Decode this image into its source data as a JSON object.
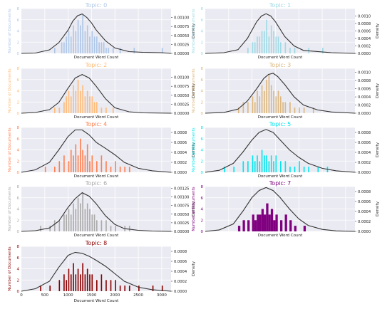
{
  "figure": {
    "shared_x_ticks": [
      "0",
      "500",
      "1000",
      "1500",
      "2000",
      "2500",
      "3000"
    ],
    "x_label": "Document Word Count",
    "y_label": "Number of Documents",
    "density_label": "Density"
  },
  "chart_data": [
    {
      "type": "bar",
      "title": "Topic: 0",
      "color": "#aec7e8",
      "xlabel": "Document Word Count",
      "ylabel": "Number of Documents",
      "y2label": "Density",
      "xlim": [
        0,
        3200
      ],
      "ylim": [
        0,
        8
      ],
      "y2lim": [
        0,
        0.00125
      ],
      "y_ticks": [
        "0",
        "2",
        "4",
        "6",
        "8"
      ],
      "density_ticks": [
        "0.00000",
        "0.00025",
        "0.00050",
        "0.00075",
        "0.00100"
      ],
      "histogram": {
        "bin_width": 25,
        "x": [
          700,
          850,
          900,
          950,
          1000,
          1050,
          1100,
          1150,
          1200,
          1250,
          1300,
          1350,
          1400,
          1450,
          1500,
          1550,
          1600,
          1650,
          1700,
          1750,
          1800,
          1850,
          1950,
          2100,
          2400,
          3000
        ],
        "counts": [
          1,
          2,
          2,
          3,
          4,
          3,
          5,
          4,
          6,
          5,
          7,
          4,
          5,
          3,
          4,
          3,
          3,
          2,
          2,
          2,
          1,
          1,
          1,
          1,
          1,
          1
        ]
      },
      "density": {
        "x": [
          0,
          300,
          600,
          800,
          1000,
          1100,
          1200,
          1300,
          1400,
          1500,
          1600,
          1800,
          2000,
          2300,
          2600,
          3000,
          3200
        ],
        "y": [
          0.0,
          1e-05,
          0.0001,
          0.0003,
          0.00065,
          0.0009,
          0.00105,
          0.0011,
          0.001,
          0.00085,
          0.00065,
          0.00035,
          0.00015,
          5e-05,
          3e-05,
          2e-05,
          0.0
        ]
      }
    },
    {
      "type": "bar",
      "title": "Topic: 1",
      "color": "#9edae5",
      "xlabel": "Document Word Count",
      "ylabel": "Number of Documents",
      "y2label": "Density",
      "xlim": [
        0,
        3200
      ],
      "ylim": [
        0,
        8
      ],
      "y2lim": [
        0,
        0.0012
      ],
      "y_ticks": [
        "0",
        "2",
        "4",
        "6",
        "8"
      ],
      "density_ticks": [
        "0.0000",
        "0.0002",
        "0.0004",
        "0.0006",
        "0.0008",
        "0.0010"
      ],
      "histogram": {
        "bin_width": 25,
        "x": [
          900,
          1000,
          1050,
          1100,
          1150,
          1200,
          1250,
          1300,
          1350,
          1400,
          1450,
          1500,
          1550,
          1600,
          1700,
          1800,
          1900,
          2200,
          2500
        ],
        "counts": [
          1,
          2,
          2,
          3,
          3,
          4,
          4,
          6,
          3,
          5,
          4,
          3,
          3,
          2,
          2,
          1,
          1,
          1,
          1
        ]
      },
      "density": {
        "x": [
          0,
          400,
          700,
          900,
          1100,
          1200,
          1300,
          1400,
          1500,
          1600,
          1700,
          1900,
          2100,
          2400,
          2700,
          3200
        ],
        "y": [
          0.0,
          2e-05,
          0.0001,
          0.0004,
          0.00085,
          0.001,
          0.00106,
          0.001,
          0.00085,
          0.00065,
          0.00045,
          0.0002,
          8e-05,
          5e-05,
          2e-05,
          0.0
        ]
      }
    },
    {
      "type": "bar",
      "title": "Topic: 2",
      "color": "#ffbb78",
      "xlabel": "Document Word Count",
      "ylabel": "Number of Documents",
      "y2label": "Density",
      "xlim": [
        0,
        3200
      ],
      "ylim": [
        0,
        8
      ],
      "y2lim": [
        0,
        0.00125
      ],
      "y_ticks": [
        "0",
        "2",
        "4",
        "6",
        "8"
      ],
      "density_ticks": [
        "0.00000",
        "0.00025",
        "0.00050",
        "0.00075",
        "0.00100"
      ],
      "histogram": {
        "bin_width": 25,
        "x": [
          700,
          800,
          900,
          950,
          1000,
          1050,
          1100,
          1150,
          1200,
          1250,
          1300,
          1350,
          1400,
          1450,
          1500,
          1550,
          1600,
          1700,
          1800,
          1950
        ],
        "counts": [
          1,
          1,
          2,
          3,
          4,
          3,
          5,
          4,
          6,
          4,
          5,
          3,
          4,
          3,
          3,
          2,
          2,
          1,
          1,
          1
        ]
      },
      "density": {
        "x": [
          0,
          300,
          600,
          800,
          1000,
          1150,
          1300,
          1450,
          1600,
          1800,
          2000,
          2300,
          2600,
          3200
        ],
        "y": [
          0.0,
          2e-05,
          0.0001,
          0.0003,
          0.0007,
          0.00098,
          0.00108,
          0.00098,
          0.00075,
          0.0004,
          0.00015,
          4e-05,
          1e-05,
          0.0
        ]
      }
    },
    {
      "type": "bar",
      "title": "Topic: 3",
      "color": "#ddb77e",
      "xlabel": "Document Word Count",
      "ylabel": "Number of Documents",
      "y2label": "Density",
      "xlim": [
        0,
        3200
      ],
      "ylim": [
        0,
        8
      ],
      "y2lim": [
        0,
        0.0011
      ],
      "y_ticks": [
        "0",
        "2",
        "4",
        "6",
        "8"
      ],
      "density_ticks": [
        "0.0000",
        "0.0002",
        "0.0004",
        "0.0006",
        "0.0008",
        "0.0010"
      ],
      "histogram": {
        "bin_width": 25,
        "x": [
          700,
          800,
          900,
          1000,
          1050,
          1100,
          1150,
          1200,
          1250,
          1300,
          1350,
          1400,
          1450,
          1500,
          1550,
          1600,
          1650,
          1700,
          1800,
          1900,
          2000,
          2100,
          2300
        ],
        "counts": [
          1,
          2,
          2,
          3,
          2,
          4,
          3,
          5,
          4,
          6,
          7,
          5,
          4,
          3,
          4,
          3,
          2,
          2,
          2,
          1,
          1,
          1,
          1
        ]
      },
      "density": {
        "x": [
          0,
          400,
          700,
          900,
          1100,
          1250,
          1350,
          1450,
          1550,
          1700,
          1900,
          2100,
          2400,
          2700,
          3200
        ],
        "y": [
          0.0,
          2e-05,
          0.0001,
          0.0003,
          0.0006,
          0.00085,
          0.00095,
          0.00098,
          0.0009,
          0.0007,
          0.0004,
          0.0002,
          8e-05,
          3e-05,
          0.0
        ]
      }
    },
    {
      "type": "bar",
      "title": "Topic: 4",
      "color": "#ff7f50",
      "xlabel": "Document Word Count",
      "ylabel": "Number of Documents",
      "y2label": "Density",
      "xlim": [
        0,
        3200
      ],
      "ylim": [
        0,
        8
      ],
      "y2lim": [
        0,
        0.0009
      ],
      "y_ticks": [
        "0",
        "2",
        "4",
        "6",
        "8"
      ],
      "density_ticks": [
        "0.0000",
        "0.0002",
        "0.0004",
        "0.0006",
        "0.0008"
      ],
      "histogram": {
        "bin_width": 25,
        "x": [
          500,
          700,
          800,
          900,
          1000,
          1050,
          1100,
          1150,
          1200,
          1250,
          1300,
          1350,
          1400,
          1450,
          1500,
          1600,
          1700,
          1800,
          1900,
          2000,
          2100,
          2200,
          2300
        ],
        "counts": [
          1,
          1,
          2,
          3,
          2,
          4,
          3,
          5,
          3,
          6,
          4,
          3,
          5,
          2,
          3,
          2,
          3,
          2,
          1,
          2,
          1,
          1,
          1
        ]
      },
      "density": {
        "x": [
          0,
          300,
          600,
          800,
          1000,
          1150,
          1300,
          1450,
          1600,
          1800,
          2000,
          2200,
          2500,
          2800,
          3200
        ],
        "y": [
          0.0,
          5e-05,
          0.0002,
          0.00045,
          0.00072,
          0.00085,
          0.00085,
          0.00075,
          0.0006,
          0.00048,
          0.00035,
          0.0002,
          8e-05,
          3e-05,
          0.0
        ]
      }
    },
    {
      "type": "bar",
      "title": "Topic: 5",
      "color": "#00e5ee",
      "xlabel": "Document Word Count",
      "ylabel": "Number of Documents",
      "y2label": "Density",
      "xlim": [
        0,
        3200
      ],
      "ylim": [
        0,
        8
      ],
      "y2lim": [
        0,
        0.0009
      ],
      "y_ticks": [
        "0",
        "2",
        "4",
        "6",
        "8"
      ],
      "density_ticks": [
        "0.0000",
        "0.0002",
        "0.0004",
        "0.0006",
        "0.0008"
      ],
      "histogram": {
        "bin_width": 25,
        "x": [
          400,
          600,
          800,
          900,
          1000,
          1050,
          1100,
          1150,
          1200,
          1250,
          1300,
          1350,
          1400,
          1450,
          1500,
          1600,
          1700,
          1800,
          1900,
          2000,
          2100,
          2200,
          2400,
          2600
        ],
        "counts": [
          1,
          1,
          2,
          2,
          3,
          2,
          3,
          2,
          4,
          3,
          3,
          2,
          3,
          2,
          3,
          2,
          2,
          1,
          1,
          2,
          1,
          1,
          1,
          1
        ]
      },
      "density": {
        "x": [
          0,
          300,
          600,
          800,
          1000,
          1150,
          1300,
          1450,
          1600,
          1800,
          2000,
          2200,
          2500,
          2800,
          3200
        ],
        "y": [
          0.0,
          4e-05,
          0.00018,
          0.0004,
          0.00065,
          0.0008,
          0.00086,
          0.0008,
          0.00065,
          0.00045,
          0.0003,
          0.00018,
          8e-05,
          3e-05,
          0.0
        ]
      }
    },
    {
      "type": "bar",
      "title": "Topic: 6",
      "color": "#aaaaaa",
      "xlabel": "Document Word Count",
      "ylabel": "Number of Documents",
      "y2label": "Density",
      "xlim": [
        0,
        3200
      ],
      "ylim": [
        0,
        8
      ],
      "y2lim": [
        0,
        0.0013
      ],
      "y_ticks": [
        "0",
        "2",
        "4",
        "6",
        "8"
      ],
      "density_ticks": [
        "0.00000",
        "0.00025",
        "0.00050",
        "0.00075",
        "0.00100",
        "0.00125"
      ],
      "histogram": {
        "bin_width": 25,
        "x": [
          400,
          600,
          700,
          800,
          900,
          950,
          1000,
          1050,
          1100,
          1150,
          1200,
          1250,
          1300,
          1350,
          1400,
          1450,
          1500,
          1550,
          1600,
          1700,
          1800,
          1900,
          2000,
          2200,
          2300
        ],
        "counts": [
          1,
          1,
          2,
          2,
          3,
          3,
          4,
          3,
          5,
          4,
          6,
          5,
          7,
          4,
          5,
          4,
          3,
          3,
          2,
          2,
          2,
          1,
          1,
          1,
          1
        ]
      },
      "density": {
        "x": [
          0,
          300,
          600,
          800,
          1000,
          1150,
          1300,
          1450,
          1600,
          1800,
          2000,
          2200,
          2500,
          2800,
          3200
        ],
        "y": [
          0.0,
          2e-05,
          0.0001,
          0.0003,
          0.0007,
          0.00095,
          0.00112,
          0.00102,
          0.0008,
          0.00045,
          0.0002,
          8e-05,
          3e-05,
          1e-05,
          0.0
        ]
      }
    },
    {
      "type": "bar",
      "title": "Topic: 7",
      "color": "#800080",
      "xlabel": "Document Word Count",
      "ylabel": "Number of Documents",
      "y2label": "Density",
      "xlim": [
        0,
        3200
      ],
      "ylim": [
        0,
        8
      ],
      "y2lim": [
        0,
        0.0009
      ],
      "y_ticks": [
        "0",
        "2",
        "4",
        "6",
        "8"
      ],
      "density_ticks": [
        "0.0000",
        "0.0002",
        "0.0004",
        "0.0006",
        "0.0008"
      ],
      "histogram": {
        "bin_width": 50,
        "x": [
          700,
          800,
          900,
          1000,
          1050,
          1100,
          1150,
          1200,
          1250,
          1300,
          1350,
          1400,
          1450,
          1500,
          1600,
          1700,
          1800,
          1900,
          2100
        ],
        "counts": [
          1,
          2,
          2,
          3,
          2,
          3,
          3,
          4,
          3,
          5,
          3,
          4,
          2,
          3,
          2,
          3,
          2,
          1,
          1
        ]
      },
      "density": {
        "x": [
          0,
          300,
          600,
          800,
          1000,
          1150,
          1300,
          1450,
          1600,
          1800,
          2000,
          2200,
          2500,
          2800,
          3200
        ],
        "y": [
          0.0,
          3e-05,
          0.00015,
          0.0004,
          0.00068,
          0.00082,
          0.00088,
          0.00082,
          0.00068,
          0.00045,
          0.00025,
          0.00012,
          4e-05,
          1e-05,
          0.0
        ]
      }
    },
    {
      "type": "bar",
      "title": "Topic: 8",
      "color": "#8b0000",
      "xlabel": "Document Word Count",
      "ylabel": "Number of Documents",
      "y2label": "Density",
      "xlim": [
        0,
        3200
      ],
      "ylim": [
        0,
        8
      ],
      "y2lim": [
        0,
        0.0009
      ],
      "y_ticks": [
        "0",
        "2",
        "4",
        "6",
        "8"
      ],
      "density_ticks": [
        "0.0000",
        "0.0002",
        "0.0004",
        "0.0006",
        "0.0008"
      ],
      "x_ticks": [
        "0",
        "500",
        "1000",
        "1500",
        "2000",
        "2500",
        "3000"
      ],
      "histogram": {
        "bin_width": 25,
        "x": [
          400,
          600,
          800,
          900,
          950,
          1000,
          1050,
          1100,
          1150,
          1200,
          1250,
          1300,
          1350,
          1400,
          1450,
          1500,
          1600,
          1700,
          1800,
          1900,
          2000,
          2100,
          2200,
          2300,
          2500,
          2800,
          3000
        ],
        "counts": [
          1,
          1,
          2,
          3,
          2,
          4,
          3,
          5,
          3,
          4,
          3,
          5,
          3,
          4,
          3,
          3,
          2,
          3,
          2,
          2,
          2,
          1,
          1,
          1,
          1,
          1,
          1
        ]
      },
      "density": {
        "x": [
          0,
          300,
          600,
          800,
          1000,
          1150,
          1300,
          1450,
          1600,
          1800,
          2000,
          2200,
          2500,
          2800,
          3200
        ],
        "y": [
          0.0,
          5e-05,
          0.0002,
          0.00048,
          0.00072,
          0.00078,
          0.00076,
          0.0007,
          0.00062,
          0.0005,
          0.00035,
          0.0002,
          8e-05,
          3e-05,
          0.0
        ]
      }
    }
  ]
}
